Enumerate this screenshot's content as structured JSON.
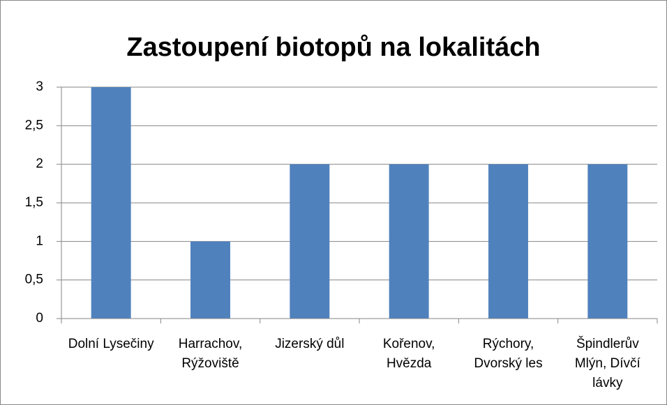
{
  "chart_data": {
    "type": "bar",
    "title": "Zastoupení biotopů na lokalitách",
    "categories": [
      "Dolní Lysečiny",
      "Harrachov, Rýžoviště",
      "Jizerský důl",
      "Kořenov, Hvězda",
      "Rýchory, Dvorský les",
      "Špindlerův Mlýn, Dívčí lávky"
    ],
    "values": [
      3,
      1,
      2,
      2,
      2,
      2
    ],
    "color": "#4f81bd",
    "ylim": [
      0,
      3
    ],
    "yticks": [
      0,
      {
        "value": 0.5,
        "label": "0,5"
      },
      1,
      {
        "value": 1.5,
        "label": "1,5"
      },
      2,
      {
        "value": 2.5,
        "label": "2,5"
      },
      3
    ],
    "grid": true
  }
}
